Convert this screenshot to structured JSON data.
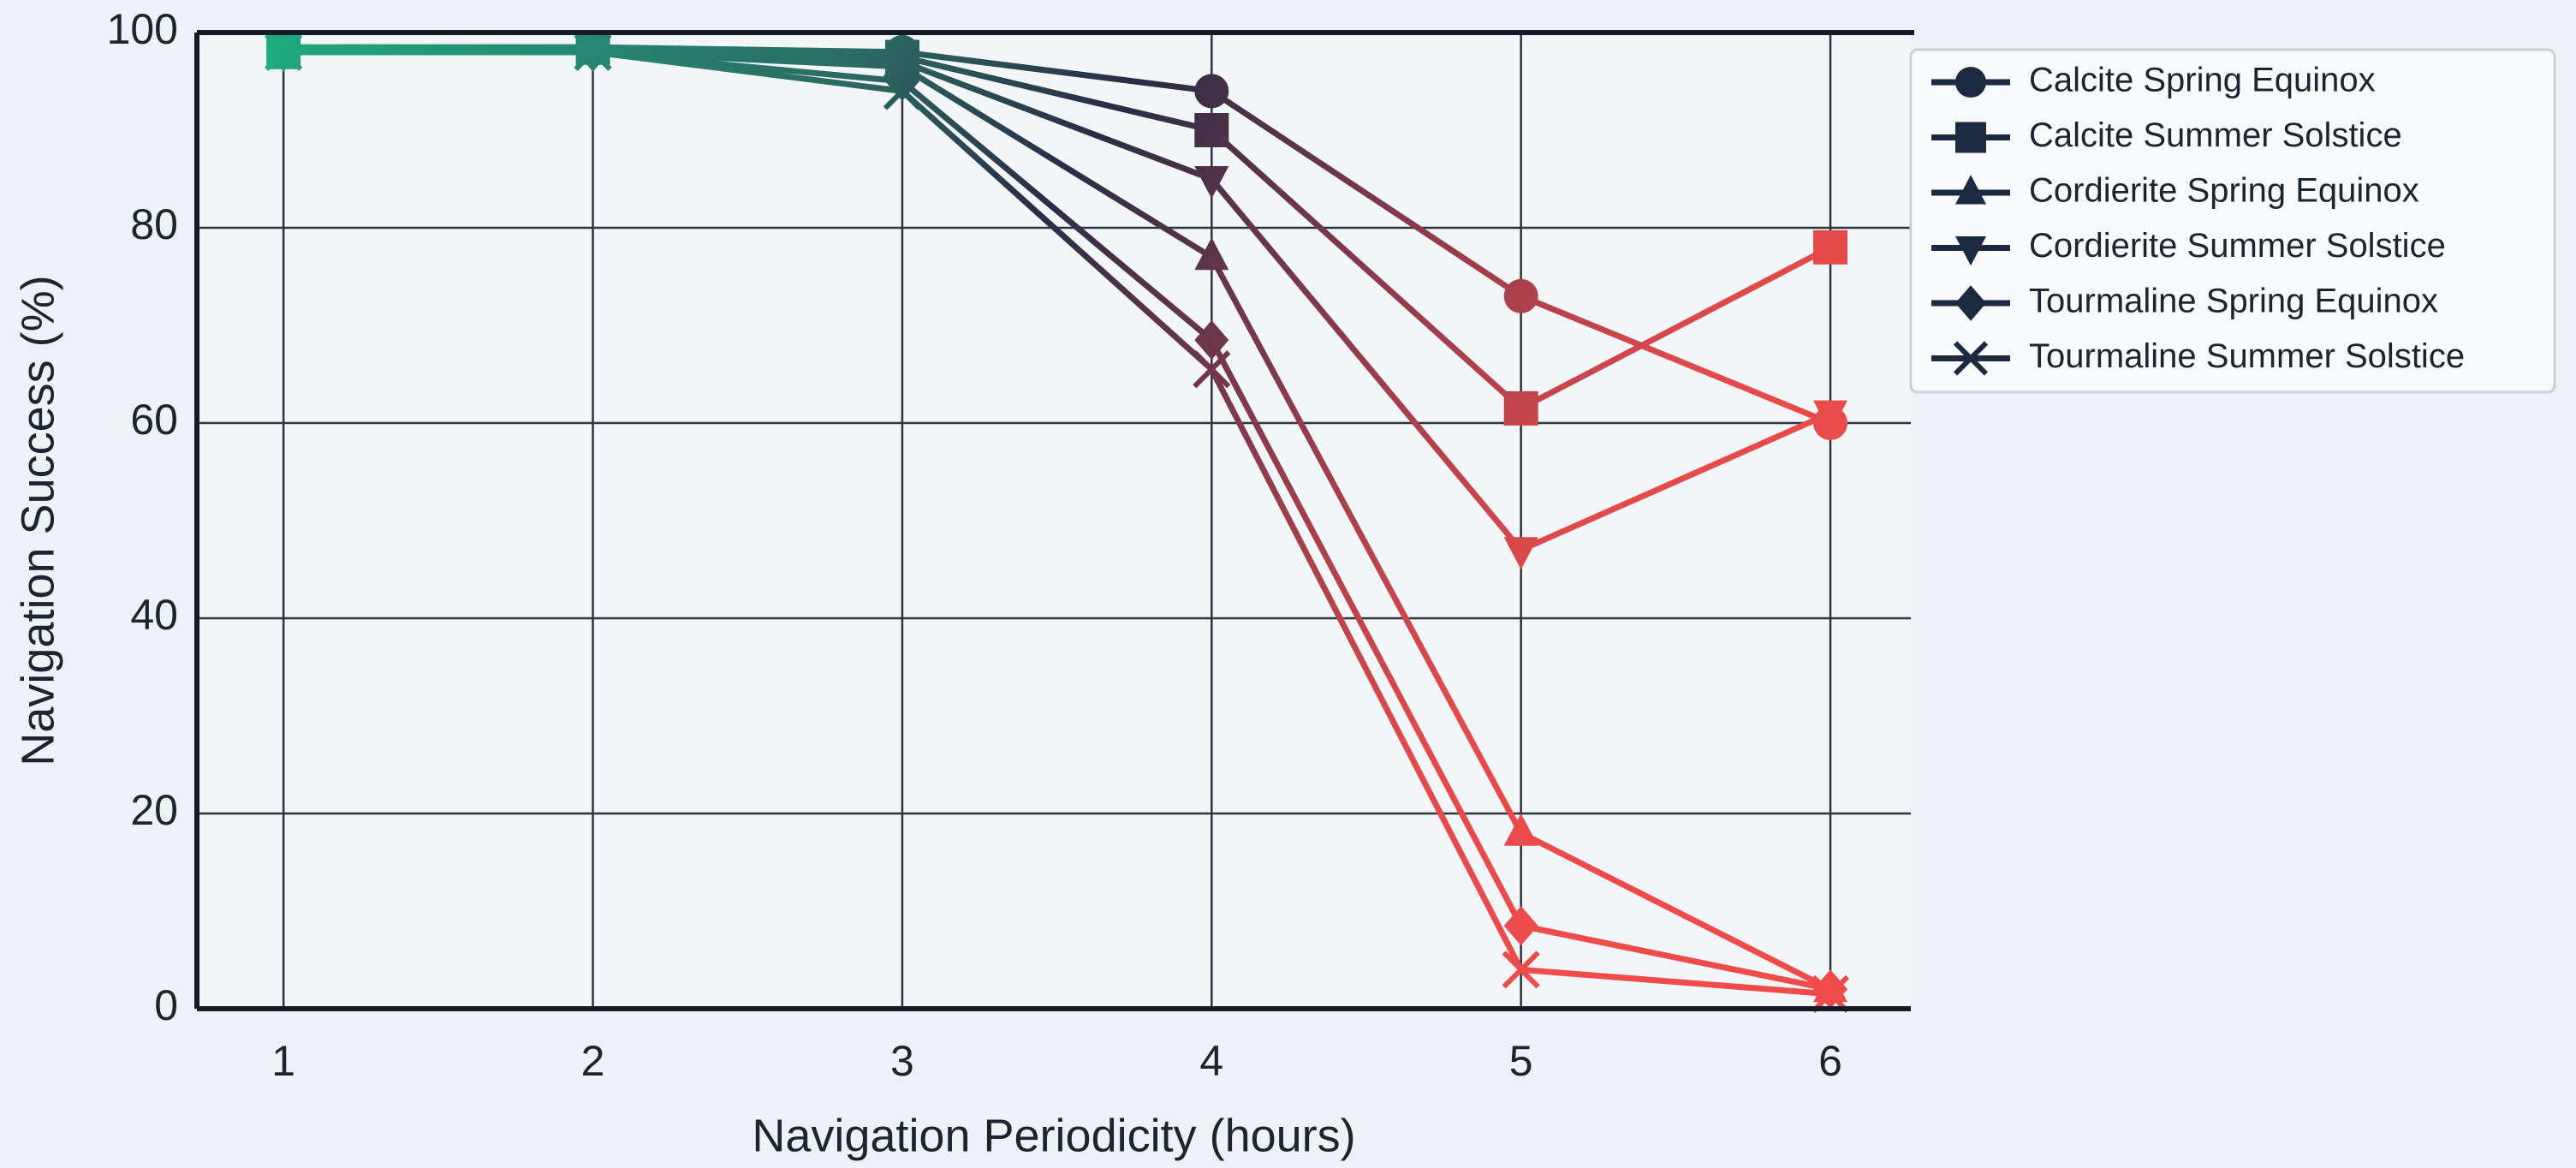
{
  "chart_data": {
    "type": "line",
    "xlabel": "Navigation Periodicity (hours)",
    "ylabel": "Navigation Success (%)",
    "x": [
      1,
      2,
      3,
      4,
      5,
      6
    ],
    "xlim": [
      0.72,
      6.26
    ],
    "xticks": [
      1,
      2,
      3,
      4,
      5,
      6
    ],
    "ylim": [
      0,
      100
    ],
    "yticks": [
      0,
      20,
      40,
      60,
      80,
      100
    ],
    "grid": true,
    "legend": "upper right",
    "series": [
      {
        "name": "Calcite Spring Equinox",
        "color": "#1b2a41",
        "marker": "circle",
        "values": [
          98.5,
          98.5,
          98,
          94,
          73,
          60
        ]
      },
      {
        "name": "Calcite Summer Solstice",
        "color": "#1b2a41",
        "marker": "square",
        "values": [
          98,
          98.5,
          97.5,
          90,
          61.5,
          78
        ]
      },
      {
        "name": "Cordierite Spring Equinox",
        "color": "#1b2a41",
        "marker": "triangle-up",
        "values": [
          98,
          98,
          96.5,
          77,
          18,
          2
        ]
      },
      {
        "name": "Cordierite Summer Solstice",
        "color": "#1b2a41",
        "marker": "triangle-down",
        "values": [
          98,
          98,
          97,
          85,
          47,
          61
        ]
      },
      {
        "name": "Tourmaline Spring Equinox",
        "color": "#1b2a41",
        "marker": "diamond",
        "values": [
          98,
          98,
          95,
          68.5,
          8.5,
          2
        ]
      },
      {
        "name": "Tourmaline Summer Solstice",
        "color": "#1b2a41",
        "marker": "x",
        "values": [
          98,
          98,
          94,
          65.5,
          4,
          1.5
        ]
      }
    ]
  }
}
